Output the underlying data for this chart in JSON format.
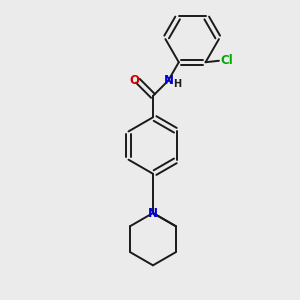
{
  "background_color": "#ebebeb",
  "bond_color": "#1a1a1a",
  "bond_width": 1.4,
  "atom_colors": {
    "O": "#cc0000",
    "N_amide": "#0000dd",
    "N_pip": "#0000dd",
    "Cl": "#00aa00",
    "H": "#1a1a1a"
  },
  "font_size_atoms": 8.5,
  "font_size_H": 7.0
}
